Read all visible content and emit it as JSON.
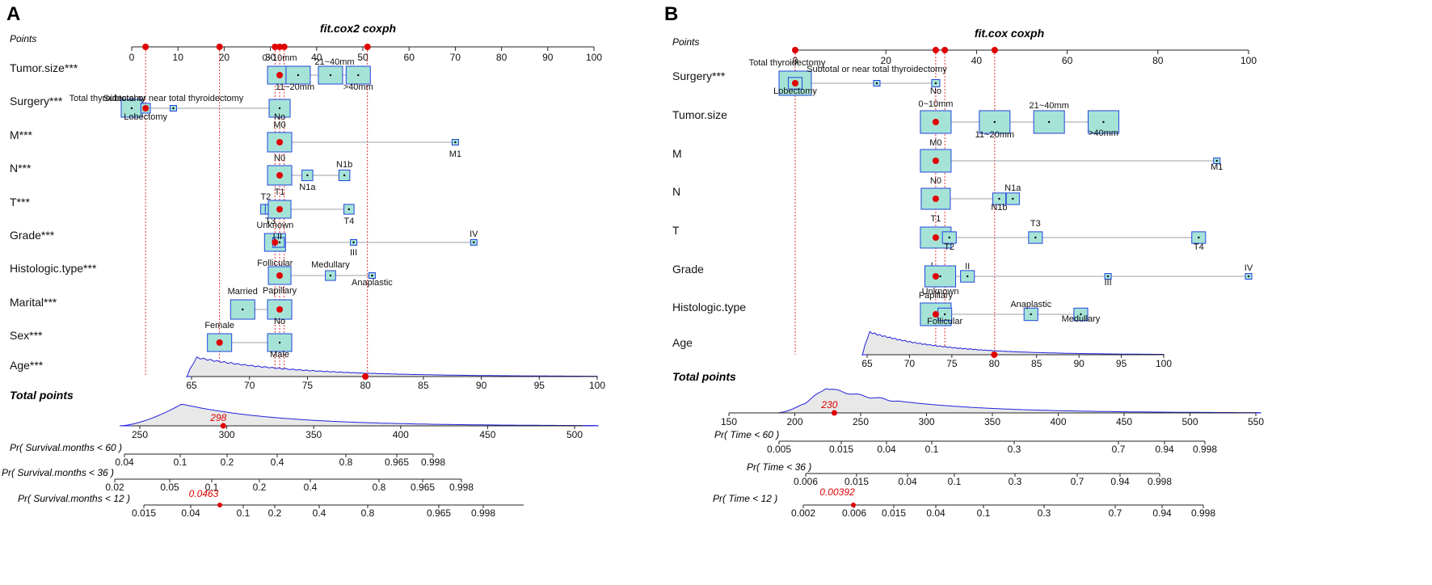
{
  "colors": {
    "box_fill": "#a6e3d7",
    "box_stroke": "#2244dd",
    "dot": "#e00000",
    "density": "#2222dd",
    "axis": "#222222"
  },
  "chart_data": [
    {
      "type": "nomogram",
      "panel_label": "A",
      "title": "fit.cox2 coxph",
      "points_label": "Points",
      "points_ticks": [
        0,
        10,
        20,
        30,
        40,
        50,
        60,
        70,
        80,
        90,
        100
      ],
      "selected_points": [
        3,
        19,
        31,
        32,
        33,
        51
      ],
      "variables": [
        {
          "label": "Tumor.size***",
          "levels": [
            {
              "name": "0~10mm",
              "points": 32
            },
            {
              "name": "11~20mm",
              "points": 36
            },
            {
              "name": "21~40mm",
              "points": 43
            },
            {
              "name": ">40mm",
              "points": 49
            }
          ],
          "selected": 32
        },
        {
          "label": "Surgery***",
          "levels": [
            {
              "name": "Total thyroidectomy",
              "points": 0
            },
            {
              "name": "Lobectomy",
              "points": 3
            },
            {
              "name": "Subtotal or near total thyroidectomy",
              "points": 9
            },
            {
              "name": "No",
              "points": 32
            }
          ],
          "selected": 3
        },
        {
          "label": "M***",
          "levels": [
            {
              "name": "M0",
              "points": 32
            },
            {
              "name": "M1",
              "points": 70
            }
          ],
          "selected": 32
        },
        {
          "label": "N***",
          "levels": [
            {
              "name": "N0",
              "points": 32
            },
            {
              "name": "N1a",
              "points": 38
            },
            {
              "name": "N1b",
              "points": 46
            }
          ],
          "selected": 32
        },
        {
          "label": "T***",
          "levels": [
            {
              "name": "T2",
              "points": 29
            },
            {
              "name": "T3",
              "points": 30
            },
            {
              "name": "T1",
              "points": 32
            },
            {
              "name": "T4",
              "points": 47
            }
          ],
          "selected": 32
        },
        {
          "label": "Grade***",
          "levels": [
            {
              "name": "Unknown",
              "points": 31
            },
            {
              "name": "I",
              "points": 31.5
            },
            {
              "name": "II",
              "points": 32
            },
            {
              "name": "III",
              "points": 48
            },
            {
              "name": "IV",
              "points": 74
            }
          ],
          "selected": 31
        },
        {
          "label": "Histologic.type***",
          "levels": [
            {
              "name": "Follicular",
              "points": 31
            },
            {
              "name": "Papillary",
              "points": 32
            },
            {
              "name": "Medullary",
              "points": 43
            },
            {
              "name": "Anaplastic",
              "points": 52
            }
          ],
          "selected": 32
        },
        {
          "label": "Marital***",
          "levels": [
            {
              "name": "Married",
              "points": 24
            },
            {
              "name": "No",
              "points": 32
            }
          ],
          "selected": 32
        },
        {
          "label": "Sex***",
          "levels": [
            {
              "name": "Female",
              "points": 19
            },
            {
              "name": "Male",
              "points": 32
            }
          ],
          "selected": 19
        }
      ],
      "age": {
        "label": "Age***",
        "ticks": [
          65,
          70,
          75,
          80,
          85,
          90,
          95,
          100
        ],
        "selected": 80
      },
      "total_points": {
        "label": "Total points",
        "ticks": [
          250,
          300,
          350,
          400,
          450,
          500
        ],
        "selected": 298
      },
      "survival_axes": [
        {
          "label": "Pr( Survival.months < 60 )",
          "ticks": [
            "0.04",
            "0.1",
            "0.2",
            "0.4",
            "0.8",
            "0.965",
            "0.998"
          ]
        },
        {
          "label": "Pr( Survival.months < 36 )",
          "ticks": [
            "0.02",
            "0.05",
            "0.1",
            "0.2",
            "0.4",
            "0.8",
            "0.965",
            "0.998"
          ]
        },
        {
          "label": "Pr( Survival.months < 12 )",
          "ticks": [
            "0.015",
            "0.04",
            "0.1",
            "0.2",
            "0.4",
            "0.8",
            "0.965",
            "0.998"
          ],
          "highlight": "0.0463"
        }
      ]
    },
    {
      "type": "nomogram",
      "panel_label": "B",
      "title": "fit.cox coxph",
      "points_label": "Points",
      "points_ticks": [
        0,
        20,
        40,
        60,
        80,
        100
      ],
      "selected_points": [
        0,
        31,
        33,
        44
      ],
      "variables": [
        {
          "label": "Surgery***",
          "levels": [
            {
              "name": "Total thyroidectomy",
              "points": 0
            },
            {
              "name": "Lobectomy",
              "points": 0
            },
            {
              "name": "Subtotal or near total thyroidectomy",
              "points": 18
            },
            {
              "name": "No",
              "points": 31
            }
          ],
          "selected": 0
        },
        {
          "label": "Tumor.size",
          "levels": [
            {
              "name": "0~10mm",
              "points": 31
            },
            {
              "name": "11~20mm",
              "points": 44
            },
            {
              "name": "21~40mm",
              "points": 56
            },
            {
              "name": ">40mm",
              "points": 68
            }
          ],
          "selected": 31
        },
        {
          "label": "M",
          "levels": [
            {
              "name": "M0",
              "points": 31
            },
            {
              "name": "M1",
              "points": 93
            }
          ],
          "selected": 31
        },
        {
          "label": "N",
          "levels": [
            {
              "name": "N0",
              "points": 31
            },
            {
              "name": "N1b",
              "points": 45
            },
            {
              "name": "N1a",
              "points": 48
            }
          ],
          "selected": 31
        },
        {
          "label": "T",
          "levels": [
            {
              "name": "T1",
              "points": 31
            },
            {
              "name": "T2",
              "points": 34
            },
            {
              "name": "T3",
              "points": 53
            },
            {
              "name": "T4",
              "points": 89
            }
          ],
          "selected": 31
        },
        {
          "label": "Grade",
          "levels": [
            {
              "name": "I",
              "points": 30.5
            },
            {
              "name": "Unknown",
              "points": 32
            },
            {
              "name": "II",
              "points": 38
            },
            {
              "name": "III",
              "points": 69
            },
            {
              "name": "IV",
              "points": 100
            }
          ],
          "selected": 31
        },
        {
          "label": "Histologic.type",
          "levels": [
            {
              "name": "Papillary",
              "points": 31
            },
            {
              "name": "Follicular",
              "points": 33
            },
            {
              "name": "Anaplastic",
              "points": 52
            },
            {
              "name": "Medullary",
              "points": 63
            }
          ],
          "selected": 31
        }
      ],
      "age": {
        "label": "Age",
        "ticks": [
          65,
          70,
          75,
          80,
          85,
          90,
          95,
          100
        ],
        "selected": 80
      },
      "total_points": {
        "label": "Total points",
        "ticks": [
          150,
          200,
          250,
          300,
          350,
          400,
          450,
          500,
          550
        ],
        "selected": 230
      },
      "survival_axes": [
        {
          "label": "Pr( Time < 60 )",
          "ticks": [
            "0.005",
            "0.015",
            "0.04",
            "0.1",
            "0.3",
            "0.7",
            "0.94",
            "0.998"
          ]
        },
        {
          "label": "Pr( Time < 36 )",
          "ticks": [
            "0.006",
            "0.015",
            "0.04",
            "0.1",
            "0.3",
            "0.7",
            "0.94",
            "0.998"
          ]
        },
        {
          "label": "Pr( Time < 12 )",
          "ticks": [
            "0.002",
            "0.006",
            "0.015",
            "0.04",
            "0.1",
            "0.3",
            "0.7",
            "0.94",
            "0.998"
          ],
          "highlight": "0.00392"
        }
      ]
    }
  ]
}
